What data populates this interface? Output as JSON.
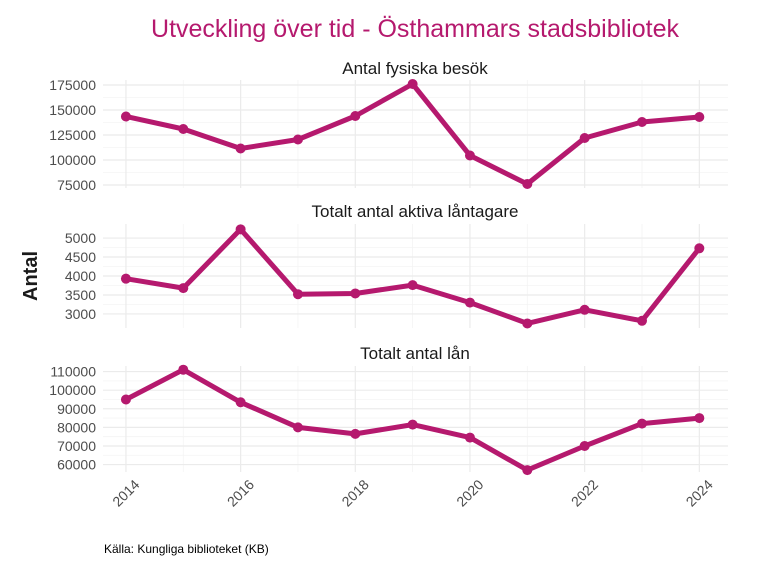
{
  "title": "Utveckling över tid - Östhammars stadsbibliotek",
  "ylabel": "Antal",
  "source": "Källa: Kungliga biblioteket (KB)",
  "colors": {
    "line": "#B5196E",
    "title": "#B5196E",
    "grid_major": "#EBEBEB",
    "grid_minor": "#F4F4F4",
    "axis_text": "#4D4D4D",
    "text": "#1A1A1A"
  },
  "chart_data": [
    {
      "type": "line",
      "title": "Antal fysiska besök",
      "x": [
        2014,
        2015,
        2016,
        2017,
        2018,
        2019,
        2020,
        2021,
        2022,
        2023,
        2024
      ],
      "values": [
        143500,
        131000,
        111500,
        120500,
        144000,
        176000,
        104500,
        76000,
        122000,
        138000,
        143000
      ],
      "yticks": [
        75000,
        100000,
        125000,
        150000,
        175000
      ],
      "ylim": [
        72000,
        180000
      ]
    },
    {
      "type": "line",
      "title": "Totalt antal aktiva låntagare",
      "x": [
        2014,
        2015,
        2016,
        2017,
        2018,
        2019,
        2020,
        2021,
        2022,
        2023,
        2024
      ],
      "values": [
        3930,
        3680,
        5230,
        3520,
        3540,
        3760,
        3300,
        2750,
        3110,
        2820,
        4730
      ],
      "yticks": [
        3000,
        3500,
        4000,
        4500,
        5000
      ],
      "ylim": [
        2630,
        5370
      ]
    },
    {
      "type": "line",
      "title": "Totalt antal lån",
      "x": [
        2014,
        2015,
        2016,
        2017,
        2018,
        2019,
        2020,
        2021,
        2022,
        2023,
        2024
      ],
      "values": [
        95000,
        111000,
        93500,
        80000,
        76500,
        81500,
        74500,
        57000,
        70000,
        82000,
        85000
      ],
      "yticks": [
        60000,
        70000,
        80000,
        90000,
        100000,
        110000
      ],
      "ylim": [
        56000,
        113000
      ]
    }
  ],
  "xaxis": {
    "ticks": [
      2014,
      2016,
      2018,
      2020,
      2022,
      2024
    ],
    "range": [
      2013.6,
      2024.5
    ]
  }
}
